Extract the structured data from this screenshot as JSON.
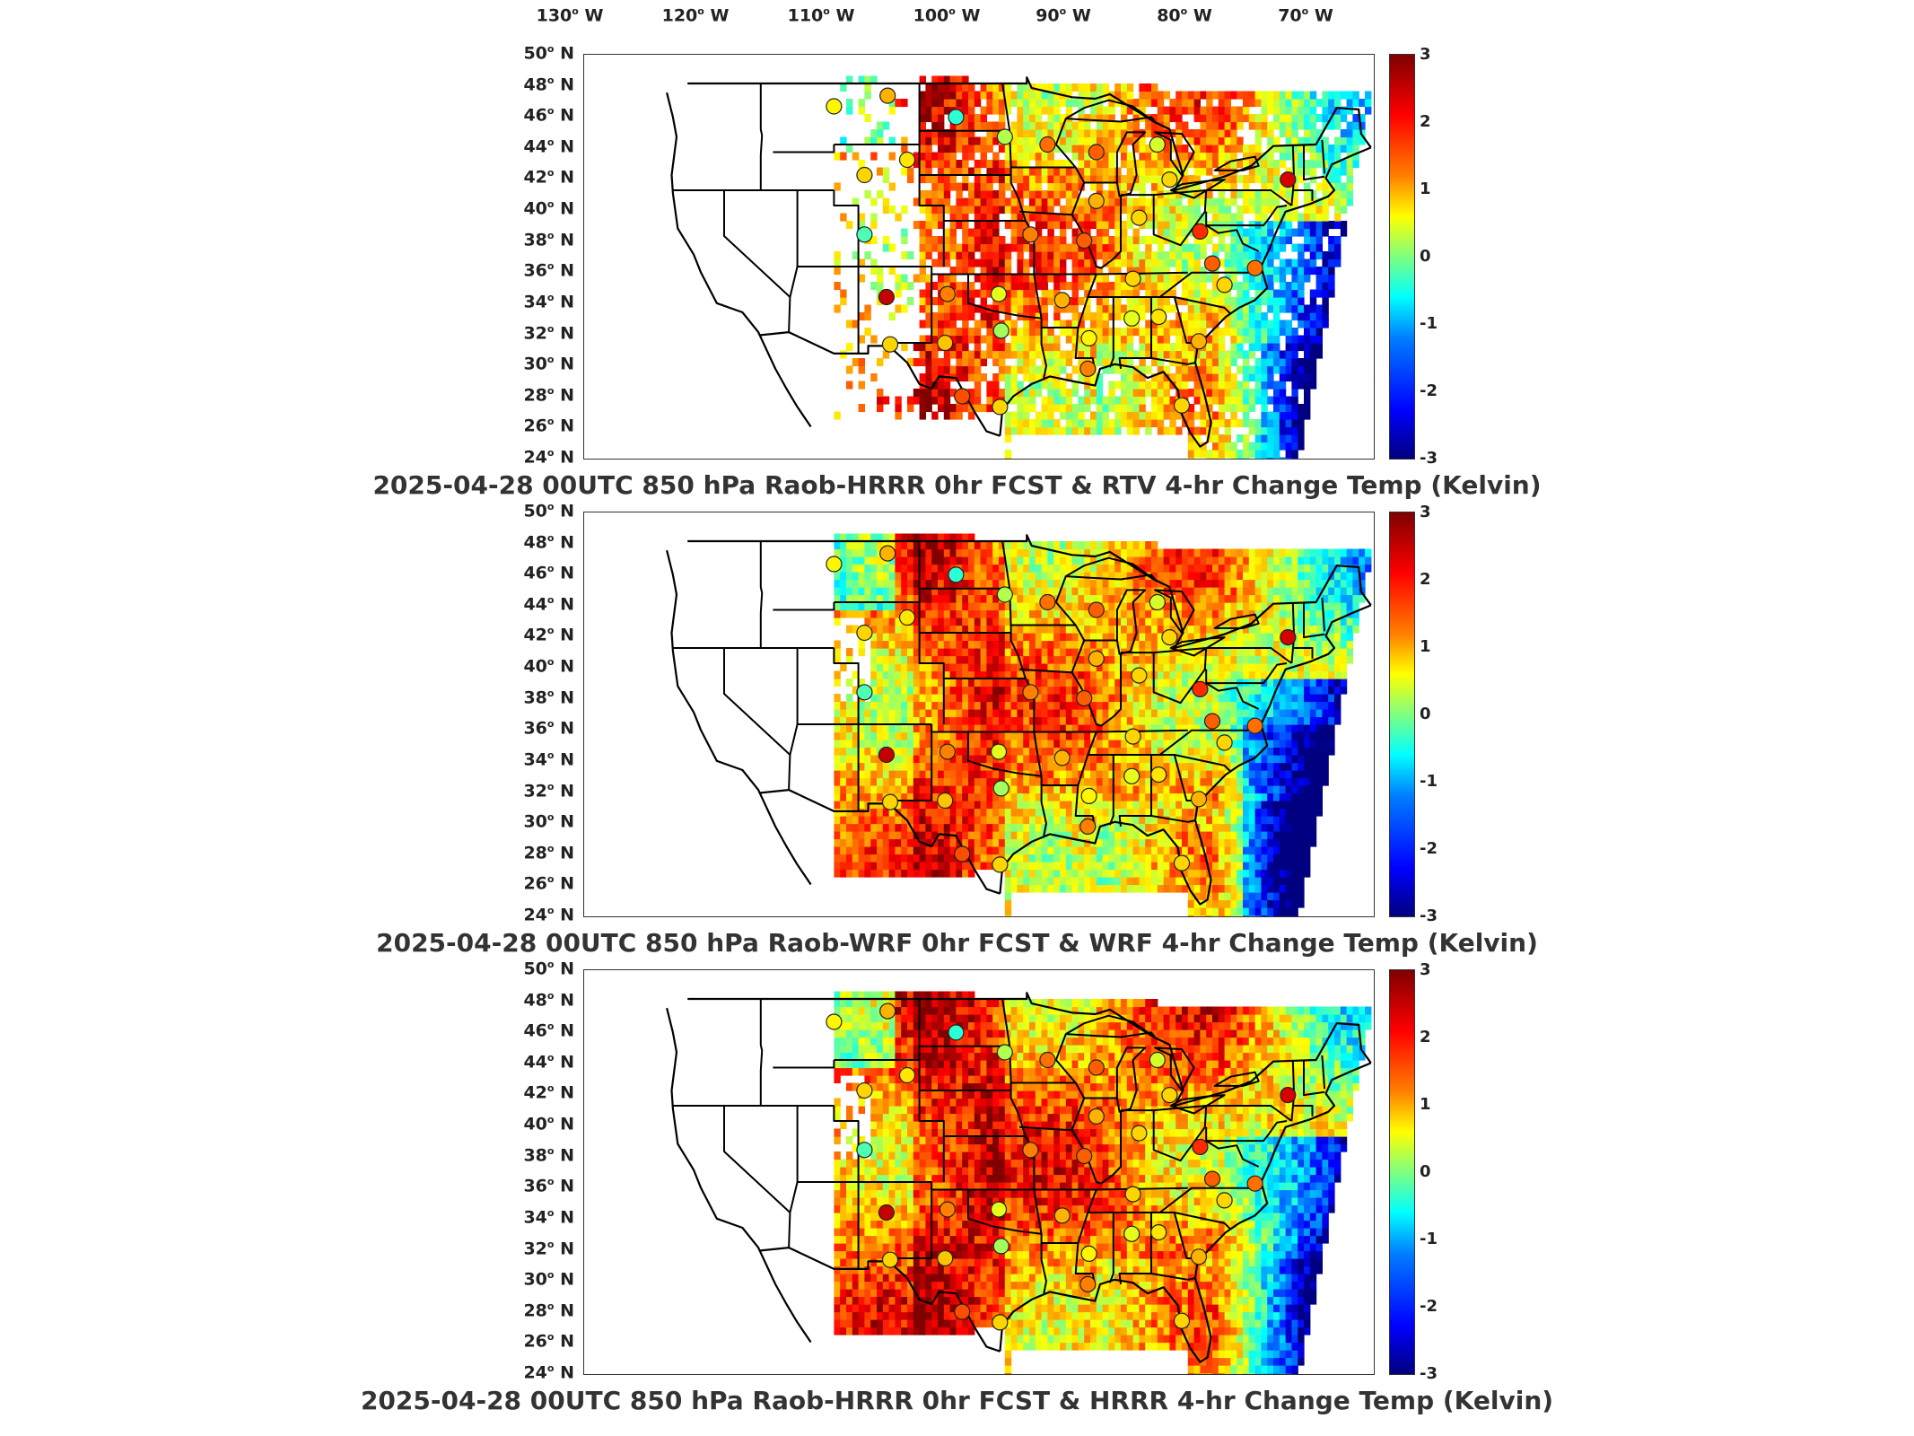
{
  "figure": {
    "longitude_labels": [
      "130",
      "120",
      "110",
      "100",
      "90",
      "80",
      "70"
    ],
    "longitude_suffix": "W",
    "latitude_labels": [
      "50",
      "48",
      "46",
      "44",
      "42",
      "40",
      "38",
      "36",
      "34",
      "32",
      "30",
      "28",
      "26",
      "24"
    ],
    "latitude_suffix": "N",
    "colorbar": {
      "ticks": [
        "3",
        "2",
        "1",
        "0",
        "-1",
        "-2",
        "-3"
      ],
      "colormap": "jet",
      "min": -3,
      "max": 3
    }
  },
  "panels": [
    {
      "title": "2025-04-28 00UTC 850 hPa Raob-HRRR 0hr FCST & RTV 4-hr Change Temp (Kelvin)",
      "field": "rtv_sparse"
    },
    {
      "title": "2025-04-28 00UTC 850 hPa Raob-WRF 0hr FCST & WRF 4-hr Change Temp (Kelvin)",
      "field": "wrf_full"
    },
    {
      "title": "2025-04-28 00UTC 850 hPa Raob-HRRR 0hr FCST & HRRR 4-hr Change Temp (Kelvin)",
      "field": "hrrr_full"
    }
  ],
  "raob_stations": [
    {
      "lon": -111.0,
      "lat": 47.5,
      "value": 0.8
    },
    {
      "lon": -106.6,
      "lat": 48.2,
      "value": 1.2
    },
    {
      "lon": -101.0,
      "lat": 46.8,
      "value": -0.5
    },
    {
      "lon": -97.0,
      "lat": 45.5,
      "value": 0.3
    },
    {
      "lon": -93.5,
      "lat": 45.0,
      "value": 1.6
    },
    {
      "lon": -89.5,
      "lat": 44.5,
      "value": 1.7
    },
    {
      "lon": -84.5,
      "lat": 45.0,
      "value": 0.5
    },
    {
      "lon": -83.5,
      "lat": 42.7,
      "value": 1.0
    },
    {
      "lon": -73.8,
      "lat": 42.7,
      "value": 2.5
    },
    {
      "lon": -108.5,
      "lat": 43.0,
      "value": 1.0
    },
    {
      "lon": -105.0,
      "lat": 44.0,
      "value": 0.9
    },
    {
      "lon": -108.5,
      "lat": 39.1,
      "value": -0.3
    },
    {
      "lon": -106.7,
      "lat": 35.0,
      "value": 2.6
    },
    {
      "lon": -106.4,
      "lat": 31.9,
      "value": 1.0
    },
    {
      "lon": -101.7,
      "lat": 35.2,
      "value": 1.5
    },
    {
      "lon": -101.9,
      "lat": 32.0,
      "value": 1.1
    },
    {
      "lon": -97.5,
      "lat": 35.2,
      "value": 0.6
    },
    {
      "lon": -97.3,
      "lat": 32.8,
      "value": 0.2
    },
    {
      "lon": -100.5,
      "lat": 28.5,
      "value": 1.8
    },
    {
      "lon": -97.4,
      "lat": 27.8,
      "value": 1.0
    },
    {
      "lon": -94.9,
      "lat": 39.1,
      "value": 1.5
    },
    {
      "lon": -90.5,
      "lat": 38.7,
      "value": 1.7
    },
    {
      "lon": -89.5,
      "lat": 41.3,
      "value": 1.2
    },
    {
      "lon": -86.0,
      "lat": 40.2,
      "value": 1.0
    },
    {
      "lon": -92.3,
      "lat": 34.8,
      "value": 1.2
    },
    {
      "lon": -90.1,
      "lat": 32.3,
      "value": 0.8
    },
    {
      "lon": -86.5,
      "lat": 36.2,
      "value": 1.0
    },
    {
      "lon": -86.6,
      "lat": 33.6,
      "value": 0.6
    },
    {
      "lon": -84.4,
      "lat": 33.7,
      "value": 0.9
    },
    {
      "lon": -81.0,
      "lat": 39.3,
      "value": 2.0
    },
    {
      "lon": -80.0,
      "lat": 37.2,
      "value": 1.7
    },
    {
      "lon": -79.0,
      "lat": 35.8,
      "value": 1.0
    },
    {
      "lon": -81.1,
      "lat": 32.1,
      "value": 1.2
    },
    {
      "lon": -82.5,
      "lat": 27.9,
      "value": 1.0
    },
    {
      "lon": -90.2,
      "lat": 30.3,
      "value": 1.5
    },
    {
      "lon": -76.5,
      "lat": 36.9,
      "value": 1.6
    }
  ]
}
